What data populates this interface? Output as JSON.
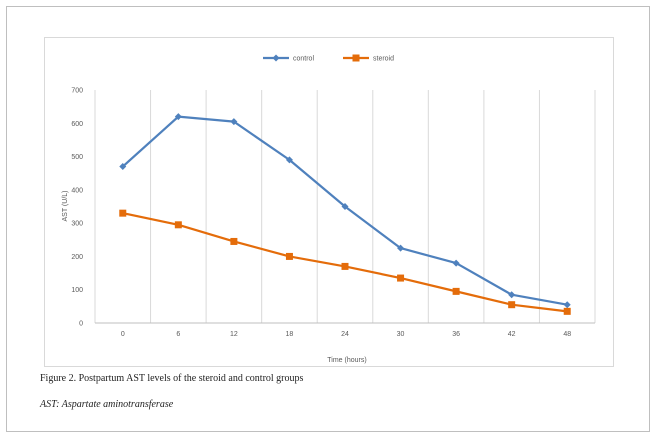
{
  "caption": "Figure 2. Postpartum AST levels of the steroid and control groups",
  "caption_sub": "AST: Aspartate aminotransferase",
  "colors": {
    "control": "#4f81bd",
    "steroid": "#e46c0a",
    "grid": "#d9d9d9",
    "text": "#595959"
  },
  "chart_data": {
    "type": "line",
    "categories": [
      "0",
      "6",
      "12",
      "18",
      "24",
      "30",
      "36",
      "42",
      "48"
    ],
    "series": [
      {
        "name": "control",
        "values": [
          470,
          620,
          605,
          490,
          350,
          225,
          180,
          85,
          55
        ]
      },
      {
        "name": "steroid",
        "values": [
          330,
          295,
          245,
          200,
          170,
          135,
          95,
          55,
          35
        ]
      }
    ],
    "xlabel": "Time (hours)",
    "ylabel": "AST (U/L)",
    "yticks": [
      "0",
      "100",
      "200",
      "300",
      "400",
      "500",
      "600",
      "700"
    ],
    "ylim": [
      0,
      700
    ],
    "grid": "vertical",
    "legend_position": "top"
  }
}
